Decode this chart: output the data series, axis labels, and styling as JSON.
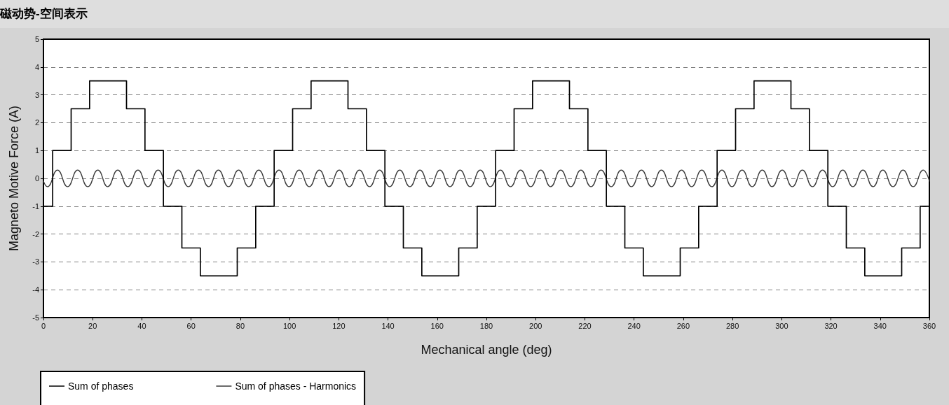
{
  "chart_data": {
    "type": "line",
    "title": "磁动势-空间表示",
    "xlabel": "Mechanical angle (deg)",
    "ylabel": "Magneto Motive Force (A)",
    "xlim": [
      0,
      360
    ],
    "xticks": [
      0,
      20,
      40,
      60,
      80,
      100,
      120,
      140,
      160,
      180,
      200,
      220,
      240,
      260,
      280,
      300,
      320,
      340,
      360
    ],
    "ylim": [
      -5,
      5
    ],
    "yticks": [
      -5,
      -4,
      -3,
      -2,
      -1,
      0,
      1,
      2,
      3,
      4,
      5
    ],
    "grid": "y",
    "legend": "bottom",
    "series": [
      {
        "name": "Sum of phases",
        "type": "step",
        "color": "#000000",
        "x": [
          0,
          3.75,
          11.25,
          18.75,
          33.75,
          41.25,
          48.75,
          56.25,
          63.75,
          78.75,
          86.25,
          93.75,
          101.25,
          108.75,
          123.75,
          131.25,
          138.75,
          146.25,
          153.75,
          168.75,
          176.25,
          183.75,
          191.25,
          198.75,
          213.75,
          221.25,
          228.75,
          236.25,
          243.75,
          258.75,
          266.25,
          273.75,
          281.25,
          288.75,
          303.75,
          311.25,
          318.75,
          326.25,
          333.75,
          348.75,
          356.25,
          360
        ],
        "values": [
          -1,
          1,
          2.5,
          3.5,
          2.5,
          1,
          -1,
          -2.5,
          -3.5,
          -2.5,
          -1,
          1,
          2.5,
          3.5,
          2.5,
          1,
          -1,
          -2.5,
          -3.5,
          -2.5,
          -1,
          1,
          2.5,
          3.5,
          2.5,
          1,
          -1,
          -2.5,
          -3.5,
          -2.5,
          -1,
          1,
          2.5,
          3.5,
          2.5,
          1,
          -1,
          -2.5,
          -3.5,
          -2.5,
          -1,
          -1
        ]
      },
      {
        "name": "Sum of phases - Harmonics",
        "color": "#3a3a3a",
        "x": [
          0,
          1.6,
          5.7,
          9.8,
          13.9,
          18,
          22.1,
          26.1,
          30.2,
          34.3,
          38.4,
          42.5,
          46.6,
          50.7,
          54.8,
          58.9,
          63,
          67.1,
          71.1,
          75.2,
          79.3,
          83.4,
          87.5,
          91.6,
          95.7,
          99.8,
          103.9,
          108,
          112.1,
          116.1,
          120.2,
          124.3,
          128.4,
          132.5,
          136.6,
          140.7,
          144.8,
          148.9,
          153,
          157.1,
          161.1,
          165.2,
          169.3,
          173.4,
          177.5,
          181.6,
          185.7,
          189.8,
          193.9,
          198,
          202.1,
          206.1,
          210.2,
          214.3,
          218.4,
          222.5,
          226.6,
          230.7,
          234.8,
          238.9,
          243,
          247.1,
          251.1,
          255.2,
          259.3,
          263.4,
          267.5,
          271.6,
          275.7,
          279.8,
          283.9,
          288,
          292.1,
          296.1,
          300.2,
          304.3,
          308.4,
          312.5,
          316.6,
          320.7,
          324.8,
          328.9,
          333,
          337.1,
          341.1,
          345.2,
          349.3,
          353.4,
          357.5,
          360
        ],
        "values": [
          -0.1,
          -0.3,
          0.3,
          -0.3,
          0.3,
          -0.3,
          0.3,
          -0.3,
          0.3,
          -0.3,
          0.3,
          -0.3,
          0.3,
          -0.3,
          0.3,
          -0.3,
          0.3,
          -0.3,
          0.3,
          -0.3,
          0.3,
          -0.3,
          0.3,
          -0.3,
          0.3,
          -0.3,
          0.3,
          -0.3,
          0.3,
          -0.3,
          0.3,
          -0.3,
          0.3,
          -0.3,
          0.3,
          -0.3,
          0.3,
          -0.3,
          0.3,
          -0.3,
          0.3,
          -0.3,
          0.3,
          -0.3,
          0.3,
          -0.3,
          0.3,
          -0.3,
          0.3,
          -0.3,
          0.3,
          -0.3,
          0.3,
          -0.3,
          0.3,
          -0.3,
          0.3,
          -0.3,
          0.3,
          -0.3,
          0.3,
          -0.3,
          0.3,
          -0.3,
          0.3,
          -0.3,
          0.3,
          -0.3,
          0.3,
          -0.3,
          0.3,
          -0.3,
          0.3,
          -0.3,
          0.3,
          -0.3,
          0.3,
          -0.3,
          0.3,
          -0.3,
          0.3,
          -0.3,
          0.3,
          -0.3,
          0.3,
          -0.3,
          0.3,
          -0.3,
          0.3,
          -0.1
        ]
      }
    ]
  }
}
